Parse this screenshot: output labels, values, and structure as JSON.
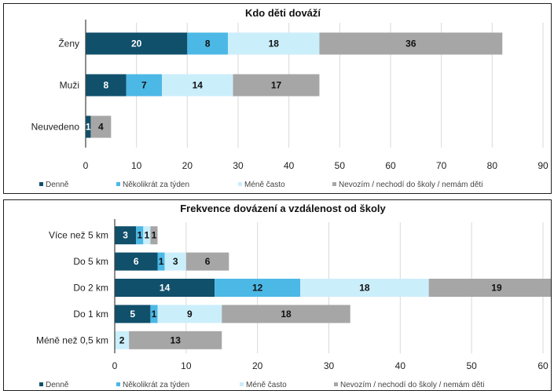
{
  "colors": {
    "Denně": "#10506b",
    "Několikrát za týden": "#4cb8e6",
    "Méně často": "#cbeefb",
    "Nevozím / nechodí do školy / nemám děti": "#a6a6a6"
  },
  "chart_data": [
    {
      "type": "bar",
      "orientation": "horizontal",
      "stacked": true,
      "title": "Kdo děti dováží",
      "categories": [
        "Ženy",
        "Muži",
        "Neuvedeno"
      ],
      "series": [
        {
          "name": "Denně",
          "values": [
            20,
            8,
            1
          ]
        },
        {
          "name": "Několikrát za týden",
          "values": [
            8,
            7,
            0
          ]
        },
        {
          "name": "Méně často",
          "values": [
            18,
            14,
            0
          ]
        },
        {
          "name": "Nevozím / nechodí do školy / nemám děti",
          "values": [
            36,
            17,
            4
          ]
        }
      ],
      "xlim": [
        0,
        90
      ],
      "xticks": [
        0,
        10,
        20,
        30,
        40,
        50,
        60,
        70,
        80,
        90
      ],
      "grid": true,
      "legend": "bottom"
    },
    {
      "type": "bar",
      "orientation": "horizontal",
      "stacked": true,
      "title": "Frekvence dovázení a vzdálenost od školy",
      "categories": [
        "Více než 5 km",
        "Do 5 km",
        "Do 2 km",
        "Do 1 km",
        "Méně než 0,5 km"
      ],
      "series": [
        {
          "name": "Denně",
          "values": [
            3,
            6,
            14,
            5,
            0
          ]
        },
        {
          "name": "Několikrát za týden",
          "values": [
            1,
            1,
            12,
            1,
            0
          ]
        },
        {
          "name": "Méně často",
          "values": [
            1,
            3,
            18,
            9,
            2
          ]
        },
        {
          "name": "Nevozím / nechodí do školy / nemám děti",
          "values": [
            1,
            6,
            19,
            18,
            13
          ]
        }
      ],
      "xlim": [
        0,
        60
      ],
      "xticks": [
        0,
        10,
        20,
        30,
        40,
        50,
        60
      ],
      "grid": true,
      "legend": "bottom"
    }
  ]
}
